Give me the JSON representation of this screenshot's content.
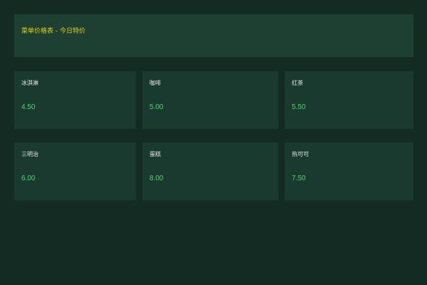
{
  "header": {
    "title": "菜单价格表 - 今日特价"
  },
  "colors": {
    "background": "#142b23",
    "header": "#1e4033",
    "card": "#1b3a2f",
    "title": "#e0d21a",
    "value": "#4fd86a"
  },
  "cards": [
    {
      "label": "冰淇淋",
      "value": "4.50"
    },
    {
      "label": "咖啡",
      "value": "5.00"
    },
    {
      "label": "红茶",
      "value": "5.50"
    },
    {
      "label": "三明治",
      "value": "6.00"
    },
    {
      "label": "蛋糕",
      "value": "8.00"
    },
    {
      "label": "热可可",
      "value": "7.50"
    }
  ]
}
